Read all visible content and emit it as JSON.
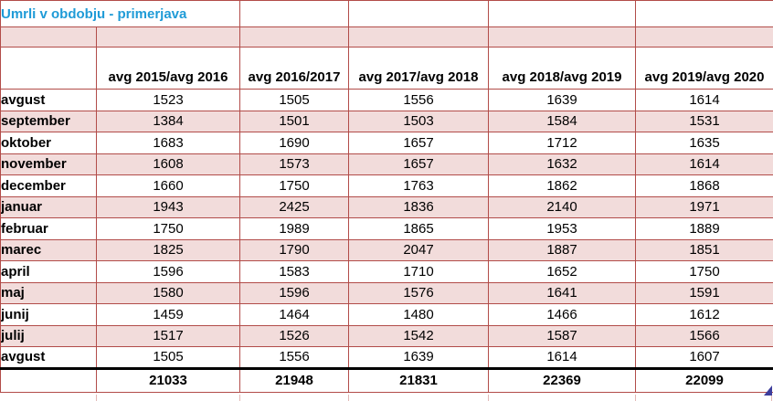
{
  "title": "Umrli v obdobju - primerjava",
  "table": {
    "corner_label": "",
    "columns": [
      "avg 2015/avg 2016",
      "avg 2016/2017",
      "avg 2017/avg 2018",
      "avg 2018/avg 2019",
      "avg 2019/avg 2020"
    ],
    "rows": [
      {
        "label": "avgust",
        "values": [
          "1523",
          "1505",
          "1556",
          "1639",
          "1614"
        ]
      },
      {
        "label": "september",
        "values": [
          "1384",
          "1501",
          "1503",
          "1584",
          "1531"
        ]
      },
      {
        "label": "oktober",
        "values": [
          "1683",
          "1690",
          "1657",
          "1712",
          "1635"
        ]
      },
      {
        "label": "november",
        "values": [
          "1608",
          "1573",
          "1657",
          "1632",
          "1614"
        ]
      },
      {
        "label": "december",
        "values": [
          "1660",
          "1750",
          "1763",
          "1862",
          "1868"
        ]
      },
      {
        "label": "januar",
        "values": [
          "1943",
          "2425",
          "1836",
          "2140",
          "1971"
        ]
      },
      {
        "label": "februar",
        "values": [
          "1750",
          "1989",
          "1865",
          "1953",
          "1889"
        ]
      },
      {
        "label": "marec",
        "values": [
          "1825",
          "1790",
          "2047",
          "1887",
          "1851"
        ]
      },
      {
        "label": "april",
        "values": [
          "1596",
          "1583",
          "1710",
          "1652",
          "1750"
        ]
      },
      {
        "label": "maj",
        "values": [
          "1580",
          "1596",
          "1576",
          "1641",
          "1591"
        ]
      },
      {
        "label": "junij",
        "values": [
          "1459",
          "1464",
          "1480",
          "1466",
          "1612"
        ]
      },
      {
        "label": "julij",
        "values": [
          "1517",
          "1526",
          "1542",
          "1587",
          "1566"
        ]
      },
      {
        "label": "avgust",
        "values": [
          "1505",
          "1556",
          "1639",
          "1614",
          "1607"
        ]
      }
    ],
    "totals": {
      "label": "",
      "values": [
        "21033",
        "21948",
        "21831",
        "22369",
        "22099"
      ]
    }
  },
  "chart_data": {
    "type": "table",
    "title": "Umrli v obdobju - primerjava",
    "categories": [
      "avgust",
      "september",
      "oktober",
      "november",
      "december",
      "januar",
      "februar",
      "marec",
      "april",
      "maj",
      "junij",
      "julij",
      "avgust"
    ],
    "series": [
      {
        "name": "avg 2015/avg 2016",
        "values": [
          1523,
          1384,
          1683,
          1608,
          1660,
          1943,
          1750,
          1825,
          1596,
          1580,
          1459,
          1517,
          1505
        ],
        "total": 21033
      },
      {
        "name": "avg 2016/2017",
        "values": [
          1505,
          1501,
          1690,
          1573,
          1750,
          2425,
          1989,
          1790,
          1583,
          1596,
          1464,
          1526,
          1556
        ],
        "total": 21948
      },
      {
        "name": "avg 2017/avg 2018",
        "values": [
          1556,
          1503,
          1657,
          1657,
          1763,
          1836,
          1865,
          2047,
          1710,
          1576,
          1480,
          1542,
          1639
        ],
        "total": 21831
      },
      {
        "name": "avg 2018/avg 2019",
        "values": [
          1639,
          1584,
          1712,
          1632,
          1862,
          2140,
          1953,
          1887,
          1652,
          1641,
          1466,
          1587,
          1614
        ],
        "total": 22369
      },
      {
        "name": "avg 2019/avg 2020",
        "values": [
          1614,
          1531,
          1635,
          1614,
          1868,
          1971,
          1889,
          1851,
          1750,
          1591,
          1612,
          1566,
          1607
        ],
        "total": 22099
      }
    ]
  },
  "colors": {
    "cell_pink": "#f2dcdb",
    "border_red": "#b24c49",
    "title_blue": "#1f9bd7",
    "totals_border_black": "#000000",
    "stub_pink": "#e2b8b6",
    "fill_handle_blue": "#3d3d9c"
  }
}
